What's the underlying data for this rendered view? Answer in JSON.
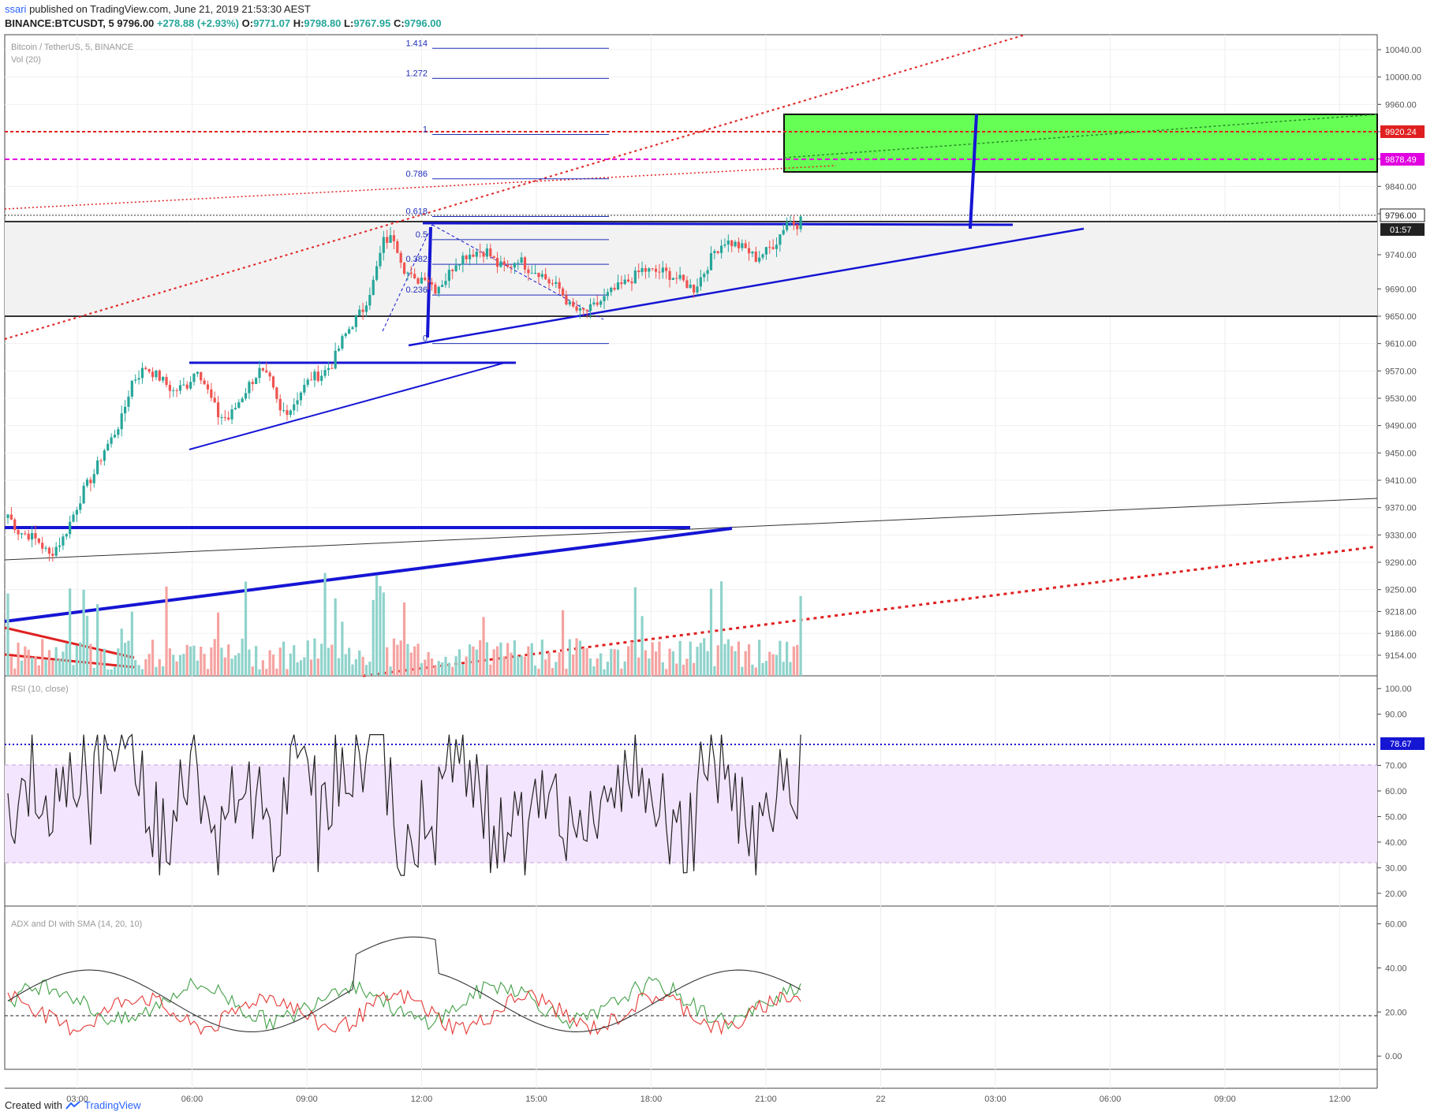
{
  "header": {
    "user": "ssari",
    "published": " published on TradingView.com, June 21, 2019 21:53:30 AEST",
    "symbol": "BINANCE:BTCUSDT, 5",
    "last": "9796.00",
    "change": "+278.88 (+2.93%)",
    "o_label": "O:",
    "o": "9771.07",
    "h_label": "H:",
    "h": "9798.80",
    "l_label": "L:",
    "l": "9767.95",
    "c_label": "C:",
    "c": "9796.00"
  },
  "footer": {
    "created": "Created with",
    "brand": "TradingView"
  },
  "colors": {
    "up": "#26a69a",
    "down": "#ef5350",
    "trendline": "#1515d4",
    "target_zone": "#66ff55",
    "fib": "#1e2db8",
    "resistance": "#e02020",
    "magenta": "#e000e0",
    "rsi_band": "#f3e5fd",
    "di_plus": "#43a047",
    "di_minus": "#e53935",
    "adx": "#333333"
  },
  "chart_data": [
    {
      "type": "candlestick",
      "title": "Bitcoin / TetherUS, 5, BINANCE",
      "volume_label": "Vol (20)",
      "ylim": [
        9140,
        10070
      ],
      "y_ticks": [
        "10040.00",
        "10000.00",
        "9960.00",
        "9920.00",
        "9880.00",
        "9840.00",
        "9800.00",
        "9740.00",
        "9690.00",
        "9650.00",
        "9610.00",
        "9570.00",
        "9530.00",
        "9490.00",
        "9450.00",
        "9410.00",
        "9370.00",
        "9330.00",
        "9290.00",
        "9250.00",
        "9218.00",
        "9186.00",
        "9154.00"
      ],
      "x_ticks": [
        "03:00",
        "06:00",
        "09:00",
        "12:00",
        "15:00",
        "18:00",
        "21:00",
        "22",
        "03:00",
        "06:00",
        "09:00",
        "12:00"
      ],
      "price_anchors": [
        [
          0,
          9360
        ],
        [
          3,
          9335
        ],
        [
          6,
          9330
        ],
        [
          9,
          9320
        ],
        [
          12,
          9300
        ],
        [
          16,
          9325
        ],
        [
          19,
          9360
        ],
        [
          22,
          9395
        ],
        [
          25,
          9420
        ],
        [
          28,
          9455
        ],
        [
          30,
          9470
        ],
        [
          33,
          9500
        ],
        [
          36,
          9555
        ],
        [
          40,
          9575
        ],
        [
          44,
          9560
        ],
        [
          48,
          9540
        ],
        [
          52,
          9550
        ],
        [
          55,
          9575
        ],
        [
          58,
          9540
        ],
        [
          61,
          9505
        ],
        [
          64,
          9500
        ],
        [
          67,
          9525
        ],
        [
          70,
          9550
        ],
        [
          73,
          9570
        ],
        [
          76,
          9555
        ],
        [
          79,
          9510
        ],
        [
          82,
          9515
        ],
        [
          85,
          9540
        ],
        [
          88,
          9560
        ],
        [
          91,
          9565
        ],
        [
          94,
          9580
        ],
        [
          97,
          9615
        ],
        [
          100,
          9640
        ],
        [
          103,
          9660
        ],
        [
          106,
          9700
        ],
        [
          109,
          9760
        ],
        [
          112,
          9765
        ],
        [
          115,
          9720
        ],
        [
          118,
          9700
        ],
        [
          121,
          9710
        ],
        [
          124,
          9690
        ],
        [
          127,
          9705
        ],
        [
          130,
          9730
        ],
        [
          133,
          9740
        ],
        [
          136,
          9745
        ],
        [
          139,
          9745
        ],
        [
          142,
          9725
        ],
        [
          145,
          9720
        ],
        [
          148,
          9735
        ],
        [
          151,
          9720
        ],
        [
          154,
          9715
        ],
        [
          157,
          9700
        ],
        [
          160,
          9690
        ],
        [
          163,
          9665
        ],
        [
          166,
          9655
        ],
        [
          169,
          9660
        ],
        [
          172,
          9672
        ],
        [
          175,
          9685
        ],
        [
          178,
          9695
        ],
        [
          181,
          9705
        ],
        [
          184,
          9718
        ],
        [
          187,
          9715
        ],
        [
          190,
          9715
        ],
        [
          193,
          9708
        ],
        [
          196,
          9700
        ],
        [
          199,
          9690
        ],
        [
          202,
          9715
        ],
        [
          205,
          9745
        ],
        [
          208,
          9760
        ],
        [
          211,
          9755
        ],
        [
          214,
          9748
        ],
        [
          217,
          9735
        ],
        [
          220,
          9745
        ],
        [
          223,
          9760
        ],
        [
          226,
          9790
        ],
        [
          229,
          9785
        ],
        [
          230,
          9796
        ]
      ],
      "annotations": {
        "tag_9920": "9920.24",
        "tag_9878": "9878.49",
        "tag_last": "9796.00",
        "tag_timer": "01:57"
      },
      "fib_levels": [
        {
          "label": "1.414",
          "value": 10042
        },
        {
          "label": "1.272",
          "value": 9998
        },
        {
          "label": "1",
          "value": 9916
        },
        {
          "label": "0.786",
          "value": 9851
        },
        {
          "label": "0.618",
          "value": 9796
        },
        {
          "label": "0.5",
          "value": 9762
        },
        {
          "label": "0.382",
          "value": 9726
        },
        {
          "label": "0.236",
          "value": 9681
        },
        {
          "label": "0",
          "value": 9610
        }
      ]
    },
    {
      "type": "line",
      "title": "RSI (10, close)",
      "ylim": [
        15,
        105
      ],
      "y_ticks": [
        "100.00",
        "90.00",
        "70.00",
        "60.00",
        "50.00",
        "40.00",
        "30.00",
        "20.00"
      ],
      "band": [
        30,
        70
      ],
      "level": 78.67,
      "level_label": "78.67"
    },
    {
      "type": "line",
      "title": "ADX and DI with SMA (14, 20, 10)",
      "ylim": [
        -6,
        68
      ],
      "y_ticks": [
        "60.00",
        "40.00",
        "20.00",
        "0.00"
      ],
      "level": 20
    }
  ]
}
